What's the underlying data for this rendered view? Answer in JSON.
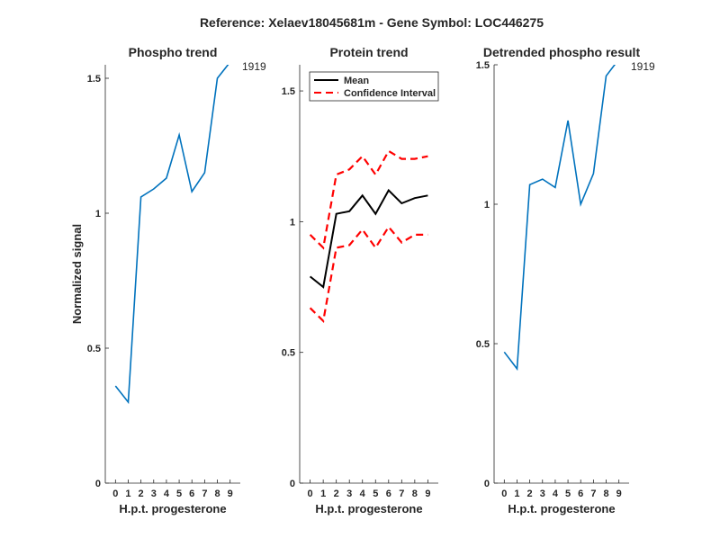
{
  "suptitle": "Reference:  Xelaev18045681m - Gene Symbol:  LOC446275",
  "chart_data": [
    {
      "type": "line",
      "title": "Phospho trend",
      "xlabel": "H.p.t. progesterone",
      "ylabel": "Normalized signal",
      "xlim": [
        -0.8,
        9.8
      ],
      "ylim": [
        0,
        1.55
      ],
      "x_ticks": [
        "0",
        "1",
        "2",
        "3",
        "4",
        "5",
        "6",
        "7",
        "8",
        "9"
      ],
      "y_ticks": [
        0,
        0.5,
        1,
        1.5
      ],
      "y_tick_labels": [
        "0",
        "0.5",
        "1",
        "1.5"
      ],
      "series": [
        {
          "color": "#0072bd",
          "style": "solid",
          "x": [
            0,
            1,
            2,
            3,
            4,
            5,
            6,
            7,
            8,
            9
          ],
          "y": [
            0.36,
            0.3,
            1.06,
            1.09,
            1.13,
            1.29,
            1.08,
            1.15,
            1.5,
            1.56
          ]
        }
      ],
      "annotation": "1919"
    },
    {
      "type": "line",
      "title": "Protein trend",
      "xlabel": "H.p.t. progesterone",
      "ylabel": "",
      "xlim": [
        -0.8,
        9.8
      ],
      "ylim": [
        0,
        1.6
      ],
      "x_ticks": [
        "0",
        "1",
        "2",
        "3",
        "4",
        "5",
        "6",
        "7",
        "8",
        "9"
      ],
      "y_ticks": [
        0,
        0.5,
        1,
        1.5
      ],
      "y_tick_labels": [
        "0",
        "0.5",
        "1",
        "1.5"
      ],
      "legend": {
        "placement": "top-left",
        "entries": [
          "Mean",
          "Confidence Interval"
        ]
      },
      "series": [
        {
          "name": "Mean",
          "color": "#000000",
          "style": "solid",
          "x": [
            0,
            1,
            2,
            3,
            4,
            5,
            6,
            7,
            8,
            9
          ],
          "y": [
            0.79,
            0.75,
            1.03,
            1.04,
            1.1,
            1.03,
            1.12,
            1.07,
            1.09,
            1.1
          ]
        },
        {
          "name": "Confidence Interval",
          "color": "#ff0000",
          "style": "dashed",
          "x": [
            0,
            1,
            2,
            3,
            4,
            5,
            6,
            7,
            8,
            9
          ],
          "y": [
            0.95,
            0.9,
            1.18,
            1.2,
            1.25,
            1.18,
            1.27,
            1.24,
            1.24,
            1.25
          ]
        },
        {
          "name": "Confidence Interval",
          "color": "#ff0000",
          "style": "dashed",
          "x": [
            0,
            1,
            2,
            3,
            4,
            5,
            6,
            7,
            8,
            9
          ],
          "y": [
            0.67,
            0.62,
            0.9,
            0.91,
            0.97,
            0.9,
            0.98,
            0.92,
            0.95,
            0.95
          ]
        }
      ]
    },
    {
      "type": "line",
      "title": "Detrended phospho result",
      "xlabel": "H.p.t. progesterone",
      "ylabel": "",
      "xlim": [
        -0.8,
        9.8
      ],
      "ylim": [
        0,
        1.5
      ],
      "x_ticks": [
        "0",
        "1",
        "2",
        "3",
        "4",
        "5",
        "6",
        "7",
        "8",
        "9"
      ],
      "y_ticks": [
        0,
        0.5,
        1,
        1.5
      ],
      "y_tick_labels": [
        "0",
        "0.5",
        "1",
        "1.5"
      ],
      "series": [
        {
          "color": "#0072bd",
          "style": "solid",
          "x": [
            0,
            1,
            2,
            3,
            4,
            5,
            6,
            7,
            8,
            9
          ],
          "y": [
            0.47,
            0.41,
            1.07,
            1.09,
            1.06,
            1.3,
            1.0,
            1.11,
            1.46,
            1.52
          ]
        }
      ],
      "annotation": "1919"
    }
  ]
}
